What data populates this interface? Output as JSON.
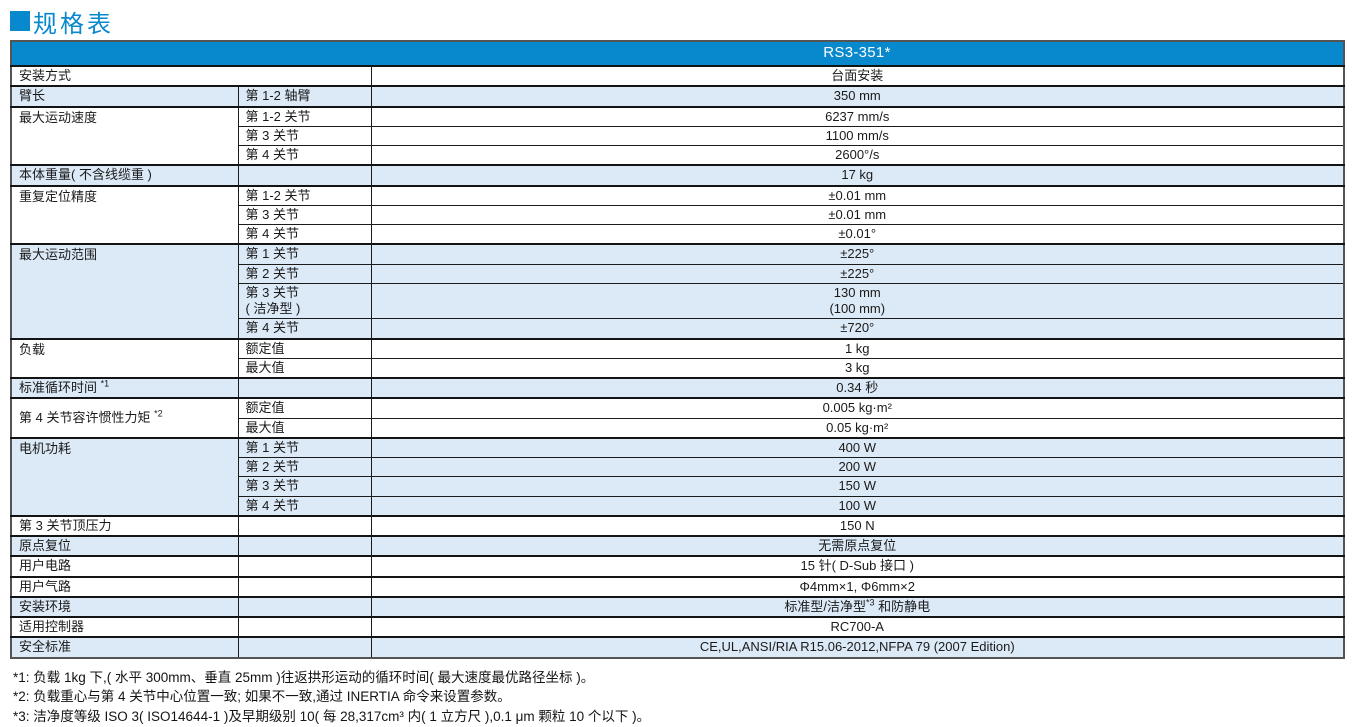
{
  "title": "规格表",
  "model": "RS3-351*",
  "colors": {
    "accent_blue": "#0888cd",
    "row_shade_blue": "#dce9f6",
    "border_dark": "#1b1b1b"
  },
  "groups": [
    {
      "name": "mounting",
      "label": "安装方式",
      "colspan": true,
      "shade": false,
      "rows": [
        {
          "sub": "",
          "value": "台面安装"
        }
      ]
    },
    {
      "name": "arm-length",
      "label": "臂长",
      "shade": true,
      "rows": [
        {
          "sub": "第 1-2 轴臂",
          "value": "350 mm"
        }
      ]
    },
    {
      "name": "max-speed",
      "label": "最大运动速度",
      "shade": false,
      "rows": [
        {
          "sub": "第 1-2 关节",
          "value": "6237 mm/s"
        },
        {
          "sub": "第 3 关节",
          "value": "1100 mm/s"
        },
        {
          "sub": "第 4 关节",
          "value": "2600°/s"
        }
      ]
    },
    {
      "name": "body-weight",
      "label": "本体重量( 不含线缆重 )",
      "shade": true,
      "rows": [
        {
          "sub": "",
          "value": "17 kg"
        }
      ]
    },
    {
      "name": "repeatability",
      "label": "重复定位精度",
      "shade": false,
      "rows": [
        {
          "sub": "第 1-2 关节",
          "value": "±0.01 mm"
        },
        {
          "sub": "第 3 关节",
          "value": "±0.01 mm"
        },
        {
          "sub": "第 4 关节",
          "value": "±0.01°"
        }
      ]
    },
    {
      "name": "max-motion-range",
      "label": "最大运动范围",
      "shade": true,
      "rows": [
        {
          "sub": "第 1 关节",
          "value": "±225°"
        },
        {
          "sub": "第 2 关节",
          "value": "±225°"
        },
        {
          "sub": [
            "第 3 关节",
            "( 洁净型 )"
          ],
          "value": [
            "130 mm",
            "(100 mm)"
          ]
        },
        {
          "sub": "第 4 关节",
          "value": "±720°"
        }
      ]
    },
    {
      "name": "payload",
      "label": "负载",
      "shade": false,
      "rows": [
        {
          "sub": "额定值",
          "value": "1 kg"
        },
        {
          "sub": "最大值",
          "value": "3 kg"
        }
      ]
    },
    {
      "name": "standard-cycle-time",
      "label": "标准循环时间",
      "label_sup": "*1",
      "shade": true,
      "rows": [
        {
          "sub": "",
          "value": "0.34 秒"
        }
      ]
    },
    {
      "name": "j4-allowable-inertia",
      "label": "第 4 关节容许惯性力矩",
      "label_sup": "*2",
      "shade": false,
      "vcenter": true,
      "rows": [
        {
          "sub": "额定值",
          "value": "0.005 kg·m²"
        },
        {
          "sub": "最大值",
          "value": "0.05 kg·m²"
        }
      ]
    },
    {
      "name": "motor-power",
      "label": "电机功耗",
      "shade": true,
      "rows": [
        {
          "sub": "第 1 关节",
          "value": "400 W"
        },
        {
          "sub": "第 2 关节",
          "value": "200 W"
        },
        {
          "sub": "第 3 关节",
          "value": "150 W"
        },
        {
          "sub": "第 4 关节",
          "value": "100 W"
        }
      ]
    },
    {
      "name": "j3-down-force",
      "label": "第 3 关节顶压力",
      "shade": false,
      "rows": [
        {
          "sub": "",
          "value": "150 N"
        }
      ]
    },
    {
      "name": "home-position",
      "label": "原点复位",
      "shade": true,
      "rows": [
        {
          "sub": "",
          "value": "无需原点复位"
        }
      ]
    },
    {
      "name": "user-wiring",
      "label": "用户电路",
      "shade": false,
      "rows": [
        {
          "sub": "",
          "value": "15 针( D-Sub 接口 )"
        }
      ]
    },
    {
      "name": "user-pneumatic",
      "label": "用户气路",
      "shade": false,
      "rows": [
        {
          "sub": "",
          "value": "Φ4mm×1, Φ6mm×2"
        }
      ]
    },
    {
      "name": "installation-environment",
      "label": "安装环境",
      "shade": true,
      "rows": [
        {
          "sub": "",
          "value": "标准型/洁净型",
          "value_sup": "*3",
          "value_suffix": " 和防静电"
        }
      ]
    },
    {
      "name": "applicable-controller",
      "label": "适用控制器",
      "shade": false,
      "rows": [
        {
          "sub": "",
          "value": "RC700-A"
        }
      ]
    },
    {
      "name": "safety-standard",
      "label": "安全标准",
      "shade": true,
      "rows": [
        {
          "sub": "",
          "value": "CE,UL,ANSI/RIA R15.06-2012,NFPA 79 (2007 Edition)"
        }
      ]
    }
  ],
  "footnotes": [
    "*1: 负载 1kg 下,( 水平 300mm、垂直 25mm )往返拱形运动的循环时间( 最大速度最优路径坐标 )。",
    "*2: 负载重心与第 4 关节中心位置一致; 如果不一致,通过 INERTIA 命令来设置参数。",
    "*3: 洁净度等级 ISO 3( ISO14644-1 )及早期级别 10( 每 28,317cm³ 内( 1 立方尺 ),0.1 μm 颗粒 10 个以下 )。"
  ]
}
